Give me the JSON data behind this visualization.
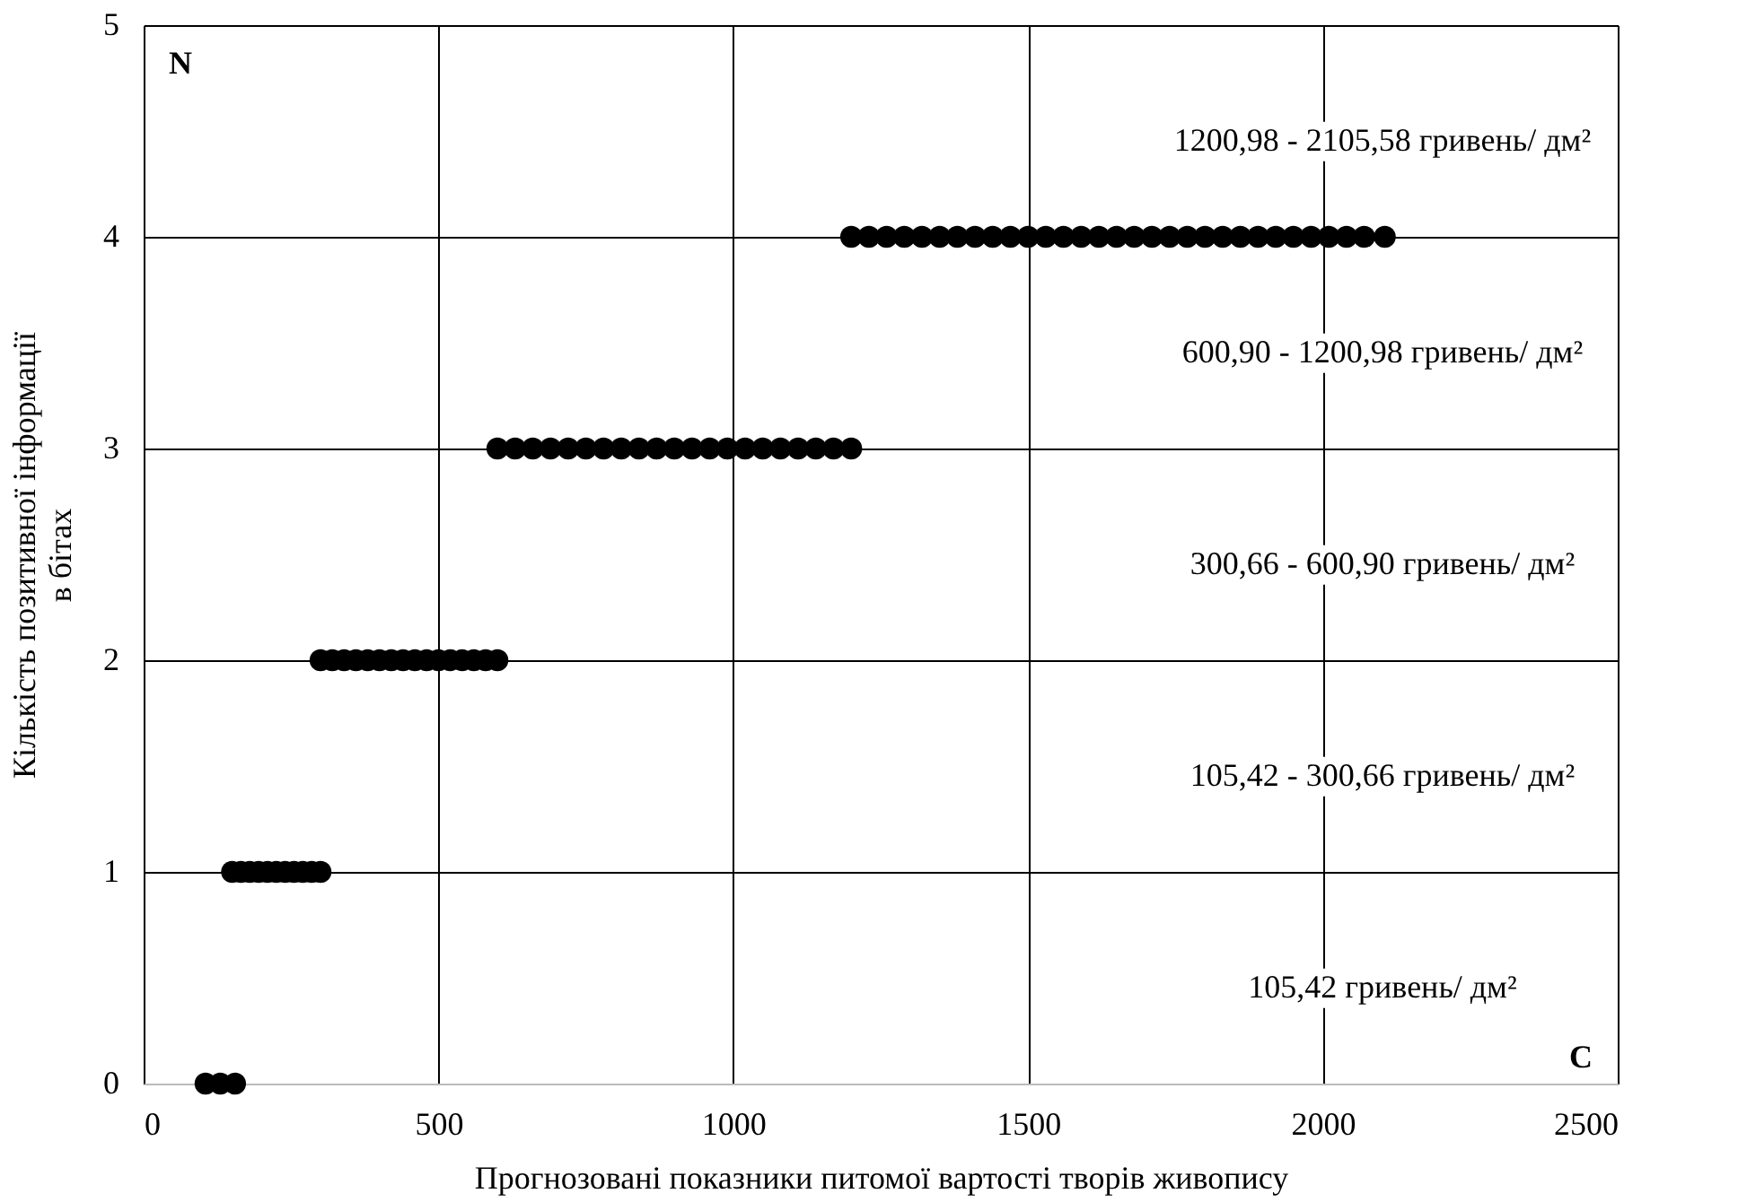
{
  "chart_data": {
    "type": "scatter",
    "xlabel": "Прогнозовані показники питомої вартості творів живопису",
    "ylabel": "Кількість позитивної інформації\nв бітах",
    "x": [
      105,
      130,
      155,
      150,
      165,
      180,
      195,
      210,
      225,
      240,
      255,
      270,
      285,
      300,
      300,
      320,
      340,
      360,
      380,
      400,
      420,
      440,
      460,
      480,
      500,
      520,
      540,
      560,
      580,
      600,
      600,
      630,
      660,
      690,
      720,
      750,
      780,
      810,
      840,
      870,
      900,
      930,
      960,
      990,
      1020,
      1050,
      1080,
      1110,
      1140,
      1170,
      1200,
      1200,
      1230,
      1260,
      1290,
      1320,
      1350,
      1380,
      1410,
      1440,
      1470,
      1500,
      1530,
      1560,
      1590,
      1620,
      1650,
      1680,
      1710,
      1740,
      1770,
      1800,
      1830,
      1860,
      1890,
      1920,
      1950,
      1980,
      2010,
      2040,
      2070,
      2105
    ],
    "values": [
      0,
      0,
      0,
      1,
      1,
      1,
      1,
      1,
      1,
      1,
      1,
      1,
      1,
      1,
      2,
      2,
      2,
      2,
      2,
      2,
      2,
      2,
      2,
      2,
      2,
      2,
      2,
      2,
      2,
      2,
      3,
      3,
      3,
      3,
      3,
      3,
      3,
      3,
      3,
      3,
      3,
      3,
      3,
      3,
      3,
      3,
      3,
      3,
      3,
      3,
      3,
      4,
      4,
      4,
      4,
      4,
      4,
      4,
      4,
      4,
      4,
      4,
      4,
      4,
      4,
      4,
      4,
      4,
      4,
      4,
      4,
      4,
      4,
      4,
      4,
      4,
      4,
      4,
      4,
      4,
      4,
      4
    ],
    "color": "#000000",
    "marker": "circle",
    "xlim": [
      0,
      2500
    ],
    "xticks": [
      0,
      500,
      1000,
      1500,
      2000,
      2500
    ],
    "ylim": [
      0,
      5
    ],
    "yticks": [
      0,
      1,
      2,
      3,
      4,
      5
    ],
    "grid": true,
    "annotations": [
      "1200,98 - 2105,58 гривень/ дм²",
      "600,90 - 1200,98 гривень/ дм²",
      "300,66 - 600,90 гривень/ дм²",
      "105,42 - 300,66 гривень/ дм²",
      "105,42 гривень/ дм²",
      "N",
      "C"
    ]
  }
}
